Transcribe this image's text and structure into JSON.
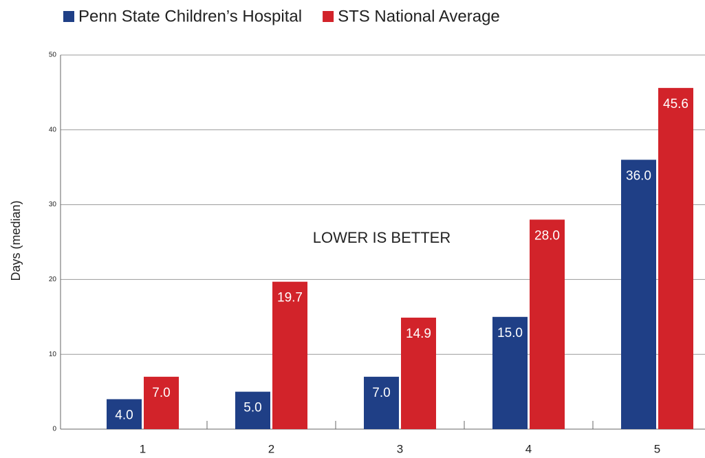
{
  "chart_data": {
    "type": "bar",
    "categories": [
      "1",
      "2",
      "3",
      "4",
      "5"
    ],
    "series": [
      {
        "name": "Penn State Children’s Hospital",
        "color": "#1f3f86",
        "values": [
          4.0,
          5.0,
          7.0,
          15.0,
          36.0
        ],
        "value_labels": [
          "4.0",
          "5.0",
          "7.0",
          "15.0",
          "36.0"
        ]
      },
      {
        "name": "STS National Average",
        "color": "#d2232a",
        "values": [
          7.0,
          19.7,
          14.9,
          28.0,
          45.6
        ],
        "value_labels": [
          "7.0",
          "19.7",
          "14.9",
          "28.0",
          "45.6"
        ]
      }
    ],
    "y_label": "Days (median)",
    "annotation": "LOWER IS BETTER",
    "ylim": [
      0,
      50
    ],
    "yticks": [
      0,
      10,
      20,
      30,
      40,
      50
    ],
    "grid": true,
    "legend": "top"
  }
}
